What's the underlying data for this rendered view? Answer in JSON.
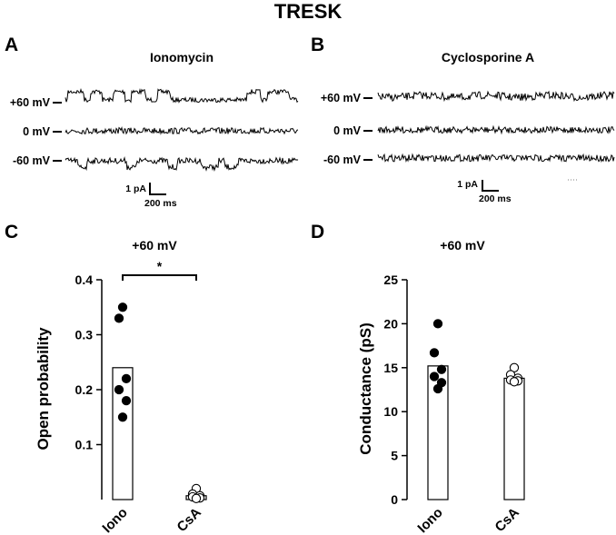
{
  "figure_title": "TRESK",
  "panels": {
    "A": {
      "letter": "A",
      "title": "Ionomycin",
      "traces": [
        "+60 mV",
        "0 mV",
        "-60 mV"
      ],
      "scale_bar": {
        "amp": "1 pA",
        "time": "200 ms"
      }
    },
    "B": {
      "letter": "B",
      "title": "Cyclosporine A",
      "traces": [
        "+60 mV",
        "0 mV",
        "-60 mV"
      ],
      "scale_bar": {
        "amp": "1 pA",
        "time": "200 ms"
      }
    }
  },
  "chart_data": [
    {
      "panel": "C",
      "type": "bar",
      "title": "+60 mV",
      "ylabel": "Open probability",
      "xlabel": "",
      "ylim": [
        0,
        0.4
      ],
      "yticks": [
        "0.1",
        "0.2",
        "0.3",
        "0.4"
      ],
      "ytick_values": [
        0.1,
        0.2,
        0.3,
        0.4
      ],
      "categories": [
        "Iono",
        "CsA"
      ],
      "values": [
        0.24,
        0.007
      ],
      "points": [
        [
          0.35,
          0.33,
          0.22,
          0.2,
          0.18,
          0.15
        ],
        [
          0.02,
          0.01,
          0.007,
          0.005,
          0.003,
          0.002
        ]
      ],
      "point_fill": [
        "#000000",
        "#ffffff"
      ],
      "significance": {
        "between": [
          "Iono",
          "CsA"
        ],
        "label": "*"
      }
    },
    {
      "panel": "D",
      "type": "bar",
      "title": "+60 mV",
      "ylabel": "Conductance (pS)",
      "xlabel": "",
      "ylim": [
        0,
        25
      ],
      "yticks": [
        "0",
        "5",
        "10",
        "15",
        "20",
        "25"
      ],
      "ytick_values": [
        0,
        5,
        10,
        15,
        20,
        25
      ],
      "categories": [
        "Iono",
        "CsA"
      ],
      "values": [
        15.2,
        13.8
      ],
      "points": [
        [
          20.0,
          16.7,
          14.8,
          14.0,
          13.3,
          12.6
        ],
        [
          15.0,
          14.2,
          13.8,
          13.6,
          13.5,
          13.4
        ]
      ],
      "point_fill": [
        "#000000",
        "#ffffff"
      ]
    }
  ]
}
